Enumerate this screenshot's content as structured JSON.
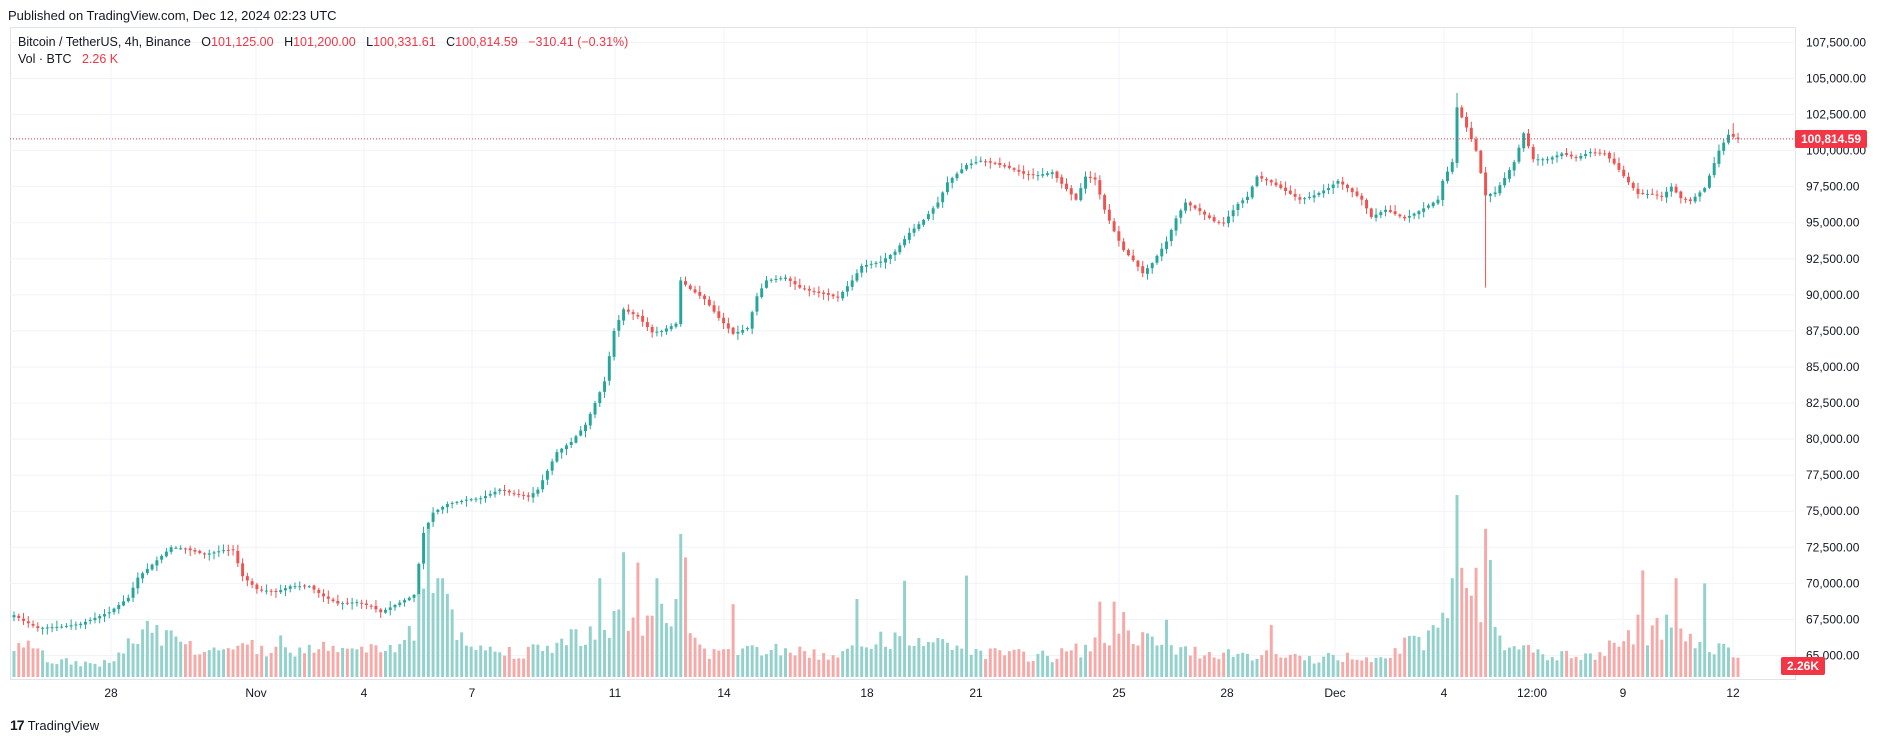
{
  "header": {
    "published": "Published on TradingView.com, Dec 12, 2024 02:23 UTC"
  },
  "legend": {
    "symbol": "Bitcoin / TetherUS, 4h, Binance",
    "open_label": "O",
    "open": "101,125.00",
    "high_label": "H",
    "high": "101,200.00",
    "low_label": "L",
    "low": "100,331.61",
    "close_label": "C",
    "close": "100,814.59",
    "change": "−310.41 (−0.31%)",
    "vol_label": "Vol · BTC",
    "vol_value": "2.26 K"
  },
  "last_price_tag": "100,814.59",
  "volume_tag": "2.26K",
  "footer": {
    "brand": "TradingView",
    "logo_glyph": "17"
  },
  "colors": {
    "up": "#26a69a",
    "down": "#ef5350",
    "vol_up": "#92d1cc",
    "vol_down": "#f7a9a7",
    "grid": "#f0f3fa",
    "price_line": "#f23645"
  },
  "chart_data": {
    "type": "candlestick",
    "title": "Bitcoin / TetherUS, 4h, Binance",
    "interval": "4h",
    "x_tick_labels": [
      "28",
      "Nov",
      "4",
      "7",
      "11",
      "14",
      "18",
      "21",
      "25",
      "28",
      "Dec",
      "4",
      "12:00",
      "9",
      "12"
    ],
    "y_tick_labels": [
      "107,500.00",
      "105,000.00",
      "102,500.00",
      "100,000.00",
      "97,500.00",
      "95,000.00",
      "92,500.00",
      "90,000.00",
      "87,500.00",
      "85,000.00",
      "82,500.00",
      "80,000.00",
      "77,500.00",
      "75,000.00",
      "72,500.00",
      "70,000.00",
      "67,500.00",
      "65,000.00"
    ],
    "y_range": [
      63300,
      108500
    ],
    "last_price": 100814.59,
    "grid": true,
    "anchors": [
      [
        0,
        67800
      ],
      [
        2,
        67400
      ],
      [
        5,
        66900
      ],
      [
        10,
        67000
      ],
      [
        14,
        67200
      ],
      [
        20,
        68000
      ],
      [
        24,
        69000
      ],
      [
        26,
        70400
      ],
      [
        30,
        71600
      ],
      [
        33,
        72500
      ],
      [
        36,
        72400
      ],
      [
        40,
        72000
      ],
      [
        44,
        72300
      ],
      [
        46,
        72300
      ],
      [
        48,
        70500
      ],
      [
        51,
        69600
      ],
      [
        55,
        69400
      ],
      [
        58,
        69800
      ],
      [
        62,
        69800
      ],
      [
        65,
        69100
      ],
      [
        68,
        68600
      ],
      [
        72,
        68700
      ],
      [
        75,
        68400
      ],
      [
        77,
        68000
      ],
      [
        80,
        68500
      ],
      [
        83,
        69000
      ],
      [
        84,
        69200
      ],
      [
        86,
        73500
      ],
      [
        88,
        74900
      ],
      [
        91,
        75500
      ],
      [
        95,
        75800
      ],
      [
        98,
        75900
      ],
      [
        102,
        76500
      ],
      [
        105,
        76200
      ],
      [
        108,
        76000
      ],
      [
        110,
        76500
      ],
      [
        112,
        77800
      ],
      [
        114,
        79100
      ],
      [
        117,
        79800
      ],
      [
        120,
        81000
      ],
      [
        122,
        82500
      ],
      [
        124,
        84000
      ],
      [
        126,
        87500
      ],
      [
        128,
        89000
      ],
      [
        131,
        88500
      ],
      [
        134,
        87400
      ],
      [
        136,
        87500
      ],
      [
        139,
        88000
      ],
      [
        140,
        91000
      ],
      [
        142,
        90400
      ],
      [
        145,
        89700
      ],
      [
        148,
        88400
      ],
      [
        151,
        87300
      ],
      [
        154,
        87700
      ],
      [
        156,
        89900
      ],
      [
        158,
        91000
      ],
      [
        162,
        91200
      ],
      [
        165,
        90500
      ],
      [
        168,
        90200
      ],
      [
        171,
        90000
      ],
      [
        173,
        89800
      ],
      [
        176,
        91000
      ],
      [
        178,
        92000
      ],
      [
        182,
        92300
      ],
      [
        185,
        93000
      ],
      [
        188,
        94300
      ],
      [
        191,
        95200
      ],
      [
        194,
        96400
      ],
      [
        196,
        97800
      ],
      [
        198,
        98400
      ],
      [
        200,
        99000
      ],
      [
        203,
        99300
      ],
      [
        206,
        99100
      ],
      [
        209,
        98800
      ],
      [
        212,
        98400
      ],
      [
        215,
        98300
      ],
      [
        218,
        98500
      ],
      [
        220,
        97700
      ],
      [
        223,
        96600
      ],
      [
        225,
        98200
      ],
      [
        227,
        98000
      ],
      [
        229,
        95900
      ],
      [
        231,
        94400
      ],
      [
        233,
        93100
      ],
      [
        235,
        92400
      ],
      [
        237,
        91500
      ],
      [
        239,
        92200
      ],
      [
        242,
        93700
      ],
      [
        244,
        95300
      ],
      [
        246,
        96400
      ],
      [
        249,
        95800
      ],
      [
        252,
        95100
      ],
      [
        254,
        95000
      ],
      [
        257,
        96300
      ],
      [
        259,
        96800
      ],
      [
        261,
        98200
      ],
      [
        264,
        97800
      ],
      [
        267,
        97200
      ],
      [
        270,
        96600
      ],
      [
        273,
        96900
      ],
      [
        276,
        97400
      ],
      [
        278,
        97900
      ],
      [
        280,
        97400
      ],
      [
        283,
        96600
      ],
      [
        285,
        95400
      ],
      [
        288,
        95900
      ],
      [
        292,
        95300
      ],
      [
        295,
        95800
      ],
      [
        297,
        96200
      ],
      [
        299,
        96600
      ],
      [
        300,
        97900
      ],
      [
        302,
        99200
      ],
      [
        303,
        103000
      ],
      [
        305,
        101600
      ],
      [
        307,
        100000
      ],
      [
        309,
        96900
      ],
      [
        311,
        97100
      ],
      [
        313,
        98100
      ],
      [
        315,
        99200
      ],
      [
        317,
        101200
      ],
      [
        319,
        99400
      ],
      [
        322,
        99400
      ],
      [
        325,
        99800
      ],
      [
        328,
        99500
      ],
      [
        331,
        99900
      ],
      [
        334,
        99800
      ],
      [
        336,
        99100
      ],
      [
        339,
        97800
      ],
      [
        341,
        97000
      ],
      [
        344,
        97000
      ],
      [
        346,
        96800
      ],
      [
        348,
        97500
      ],
      [
        350,
        96700
      ],
      [
        352,
        96500
      ],
      [
        355,
        97400
      ],
      [
        358,
        100000
      ],
      [
        360,
        101100
      ],
      [
        362,
        100815
      ]
    ],
    "volume_profile": [
      [
        0,
        14
      ],
      [
        8,
        6
      ],
      [
        20,
        5
      ],
      [
        28,
        18
      ],
      [
        32,
        16
      ],
      [
        40,
        10
      ],
      [
        46,
        11
      ],
      [
        60,
        11
      ],
      [
        76,
        10
      ],
      [
        82,
        13
      ],
      [
        86,
        40
      ],
      [
        90,
        22
      ],
      [
        100,
        10
      ],
      [
        110,
        10
      ],
      [
        126,
        22
      ],
      [
        130,
        18
      ],
      [
        138,
        23
      ],
      [
        146,
        9
      ],
      [
        160,
        11
      ],
      [
        172,
        8
      ],
      [
        184,
        15
      ],
      [
        196,
        13
      ],
      [
        204,
        9
      ],
      [
        218,
        8
      ],
      [
        234,
        15
      ],
      [
        244,
        10
      ],
      [
        258,
        9
      ],
      [
        270,
        7
      ],
      [
        286,
        8
      ],
      [
        298,
        16
      ],
      [
        304,
        34
      ],
      [
        310,
        16
      ],
      [
        320,
        9
      ],
      [
        330,
        7
      ],
      [
        340,
        15
      ],
      [
        348,
        20
      ],
      [
        355,
        14
      ],
      [
        362,
        7
      ]
    ],
    "volume_highlights": [
      [
        0,
        10
      ],
      [
        3,
        14
      ],
      [
        5,
        11
      ],
      [
        29,
        17
      ],
      [
        30,
        20
      ],
      [
        32,
        18
      ],
      [
        48,
        13
      ],
      [
        52,
        12
      ],
      [
        56,
        16
      ],
      [
        84,
        14
      ],
      [
        86,
        34
      ],
      [
        87,
        57
      ],
      [
        89,
        38
      ],
      [
        90,
        38
      ],
      [
        91,
        32
      ],
      [
        92,
        26
      ],
      [
        123,
        38
      ],
      [
        128,
        48
      ],
      [
        131,
        44
      ],
      [
        135,
        38
      ],
      [
        139,
        30
      ],
      [
        140,
        55
      ],
      [
        141,
        46
      ],
      [
        151,
        28
      ],
      [
        177,
        30
      ],
      [
        187,
        37
      ],
      [
        200,
        39
      ],
      [
        228,
        29
      ],
      [
        231,
        29
      ],
      [
        233,
        25
      ],
      [
        242,
        22
      ],
      [
        264,
        20
      ],
      [
        302,
        38
      ],
      [
        303,
        70
      ],
      [
        304,
        42
      ],
      [
        307,
        42
      ],
      [
        309,
        57
      ],
      [
        310,
        45
      ],
      [
        339,
        18
      ],
      [
        341,
        24
      ],
      [
        342,
        41
      ],
      [
        347,
        24
      ],
      [
        349,
        38
      ],
      [
        355,
        36
      ]
    ],
    "crosshair": null
  }
}
